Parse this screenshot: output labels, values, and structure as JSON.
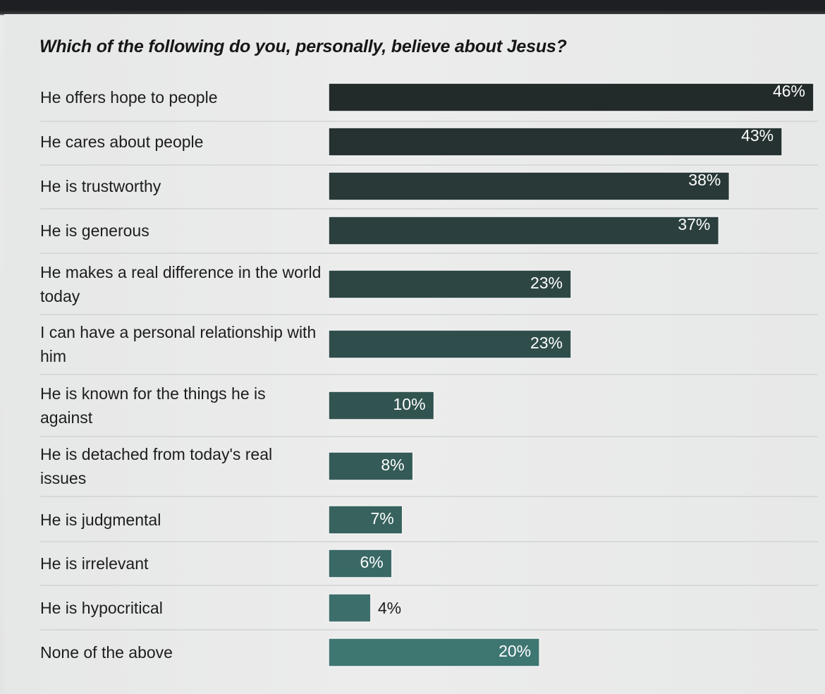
{
  "chart_data": {
    "type": "bar",
    "orientation": "horizontal",
    "title": "Which of the following do you, personally, believe about Jesus?",
    "categories": [
      "He offers hope to people",
      "He cares about people",
      "He is trustworthy",
      "He is generous",
      "He makes a real difference in the world today",
      "I can have a personal relationship with him",
      "He is known for the things he is against",
      "He is detached from today's real issues",
      "He is judgmental",
      "He is irrelevant",
      "He is hypocritical",
      "None of the above"
    ],
    "values": [
      46,
      43,
      38,
      37,
      23,
      23,
      10,
      8,
      7,
      6,
      4,
      20
    ],
    "value_labels": [
      "46%",
      "43%",
      "38%",
      "37%",
      "23%",
      "23%",
      "10%",
      "8%",
      "7%",
      "6%",
      "4%",
      "20%"
    ],
    "unit": "%",
    "xlabel": "",
    "ylabel": "",
    "xlim": [
      0,
      46
    ],
    "grid": false,
    "legend": "none",
    "colors": {
      "bar_dark": "#232b2a",
      "bar_teal": "#3e7672",
      "separator": "#d2d4d4",
      "label_text": "#1d1d1d"
    }
  }
}
